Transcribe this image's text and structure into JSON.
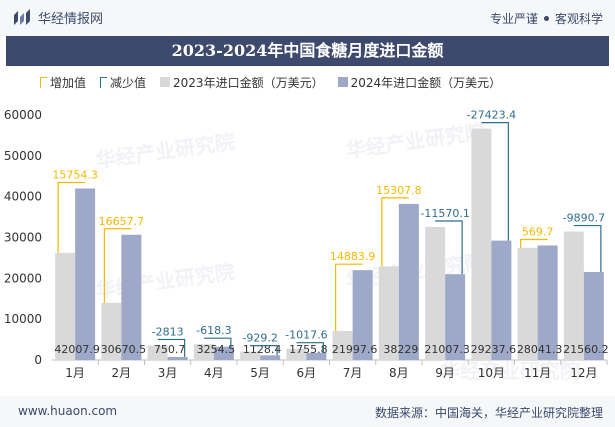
{
  "header": {
    "brand": "华经情报网",
    "tagline_left": "专业严谨",
    "tagline_right": "客观科学"
  },
  "watermark": "华经产业研究院",
  "footer": {
    "website": "www.huaon.com",
    "source": "数据来源：中国海关，华经产业研究院整理"
  },
  "chart_data": {
    "type": "bar",
    "title": "2023-2024年中国食糖月度进口金额",
    "categories": [
      "1月",
      "2月",
      "3月",
      "4月",
      "5月",
      "6月",
      "7月",
      "8月",
      "9月",
      "10月",
      "11月",
      "12月"
    ],
    "series": [
      {
        "name": "2023年进口金额（万美元）",
        "color": "#d9d9d9",
        "values": [
          26253.6,
          14012.8,
          3563.7,
          3872.8,
          2057.7,
          2773.4,
          7113.7,
          22921.2,
          32577.4,
          56661.0,
          27471.6,
          31450.9
        ]
      },
      {
        "name": "2024年进口金额（万美元）",
        "color": "#9ea8c8",
        "values": [
          42007.9,
          30670.5,
          750.7,
          3254.5,
          1128.4,
          1755.8,
          21997.6,
          38229,
          21007.3,
          29237.6,
          28041.3,
          21560.2
        ]
      }
    ],
    "bar_labels": [
      "42007.9",
      "30670.5",
      "750.7",
      "3254.5",
      "1128.4",
      "1755.8",
      "21997.6",
      "38229",
      "21007.3",
      "29237.6",
      "28041.3",
      "21560.2"
    ],
    "changes": [
      15754.3,
      16657.7,
      -2813,
      -618.3,
      -929.2,
      -1017.6,
      14883.9,
      15307.8,
      -11570.1,
      -27423.4,
      569.7,
      -9890.7
    ],
    "change_labels": [
      "15754.3",
      "16657.7",
      "-2813",
      "-618.3",
      "-929.2",
      "-1017.6",
      "14883.9",
      "15307.8",
      "-11570.1",
      "-27423.4",
      "569.7",
      "-9890.7"
    ],
    "legend": {
      "increase": "增加值",
      "decrease": "减少值",
      "y2023": "2023年进口金额（万美元）",
      "y2024": "2024年进口金额（万美元）"
    },
    "colors": {
      "increase": "#f5b800",
      "decrease": "#2e6e8e",
      "axis": "#bfbfbf"
    },
    "yticks": [
      "0",
      "10000",
      "20000",
      "30000",
      "40000",
      "50000",
      "60000"
    ],
    "ylim": [
      0,
      60000
    ],
    "grid": false,
    "legend_position": "top-left"
  }
}
